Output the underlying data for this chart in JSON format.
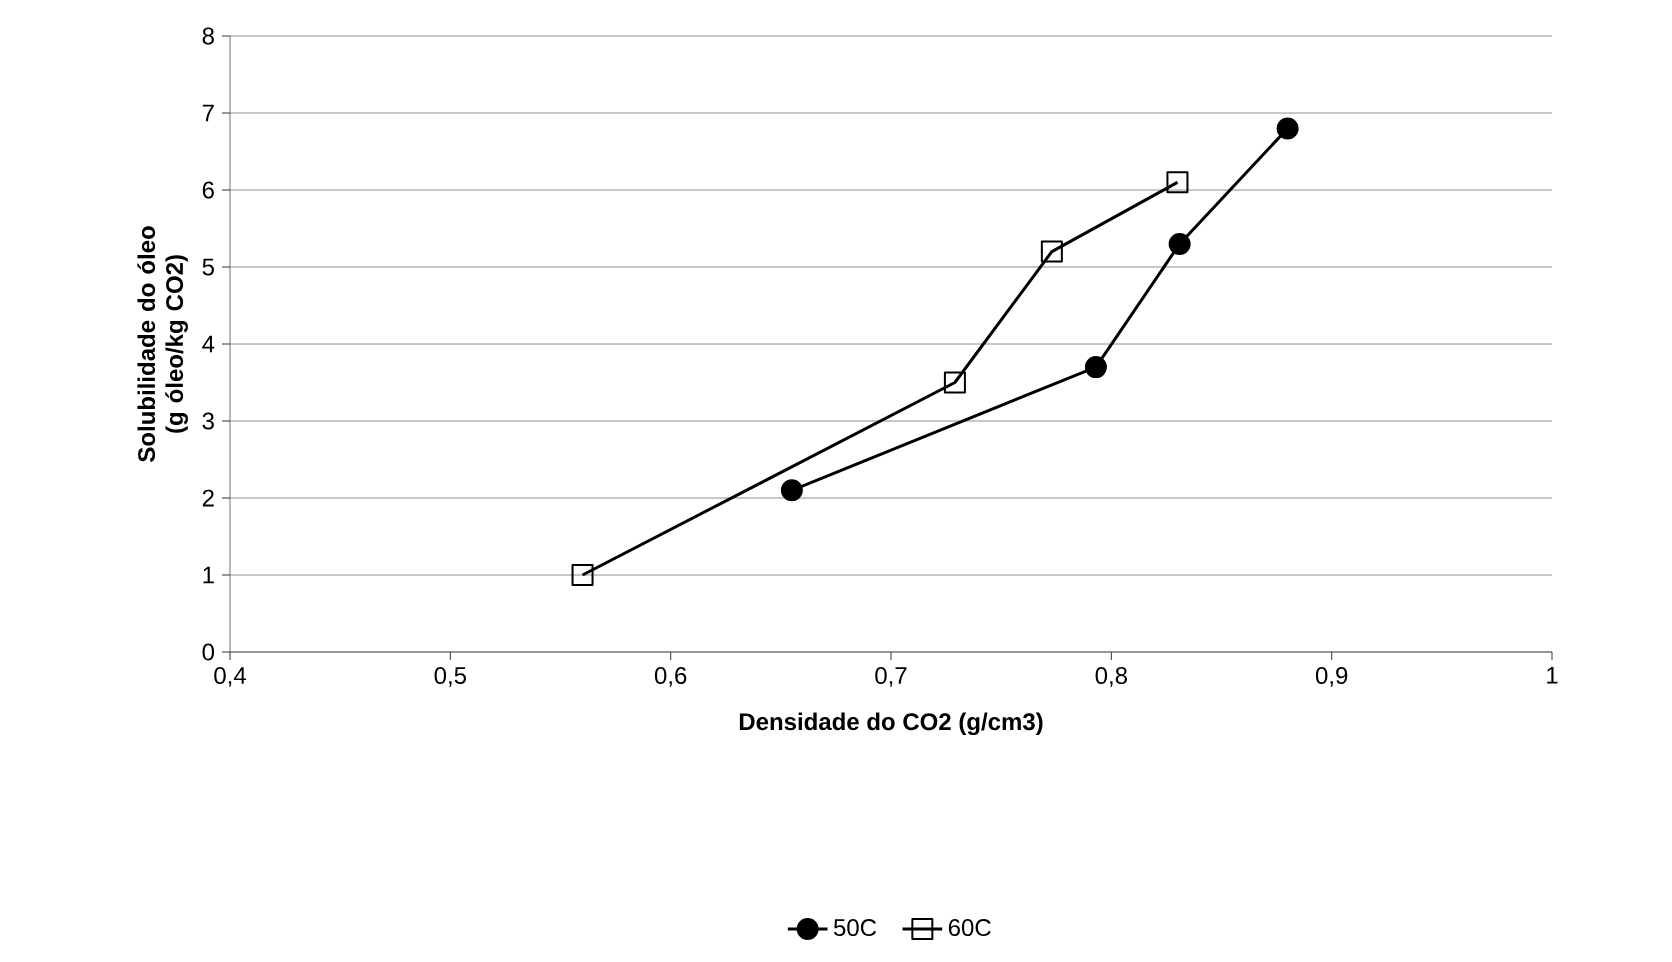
{
  "chart_data": {
    "type": "line",
    "xlabel": "Densidade do CO2 (g/cm3)",
    "ylabel": "Solubilidade do óleo (g óleo/kg CO2)",
    "xlim": [
      0.4,
      1
    ],
    "ylim": [
      0,
      8
    ],
    "xticks": [
      {
        "value": 0.4,
        "label": "0,4"
      },
      {
        "value": 0.5,
        "label": "0,5"
      },
      {
        "value": 0.6,
        "label": "0,6"
      },
      {
        "value": 0.7,
        "label": "0,7"
      },
      {
        "value": 0.8,
        "label": "0,8"
      },
      {
        "value": 0.9,
        "label": "0,9"
      },
      1
    ],
    "yticks": [
      0,
      1,
      2,
      3,
      4,
      5,
      6,
      7,
      8
    ],
    "grid": "y",
    "legend": "bottom",
    "series": [
      {
        "name": "50C",
        "color": "#000000",
        "marker": "circle",
        "x": [
          0.655,
          0.793,
          0.831,
          0.88
        ],
        "values": [
          2.1,
          3.7,
          5.3,
          6.8
        ]
      },
      {
        "name": "60C",
        "color": "#000000",
        "marker": "square",
        "x": [
          0.56,
          0.729,
          0.773,
          0.83
        ],
        "values": [
          1.0,
          3.5,
          5.2,
          6.1
        ]
      }
    ]
  }
}
